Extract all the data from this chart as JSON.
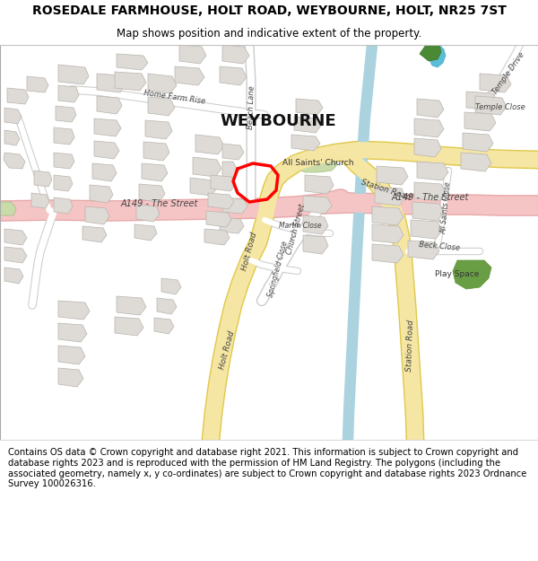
{
  "title": "ROSEDALE FARMHOUSE, HOLT ROAD, WEYBOURNE, HOLT, NR25 7ST",
  "subtitle": "Map shows position and indicative extent of the property.",
  "footer": "Contains OS data © Crown copyright and database right 2021. This information is subject to Crown copyright and database rights 2023 and is reproduced with the permission of HM Land Registry. The polygons (including the associated geometry, namely x, y co-ordinates) are subject to Crown copyright and database rights 2023 Ordnance Survey 100026316.",
  "bg_color": "#f2f0ed",
  "road_a_color": "#f5c4c4",
  "road_a_edge": "#e8a8a8",
  "road_b_color": "#f5e6a3",
  "road_b_edge": "#e0c84a",
  "road_minor_color": "#ffffff",
  "road_minor_edge": "#cccccc",
  "building_color": "#dedad5",
  "building_edge": "#b8b4ae",
  "water_color": "#aad3df",
  "green1_color": "#c8dba8",
  "green2_color": "#6a9e45",
  "green3_color": "#4a8a35",
  "property_color": "#ff0000",
  "title_fontsize": 10,
  "subtitle_fontsize": 8.5,
  "footer_fontsize": 7.2,
  "label_color": "#444444",
  "weybourne_fontsize": 13
}
